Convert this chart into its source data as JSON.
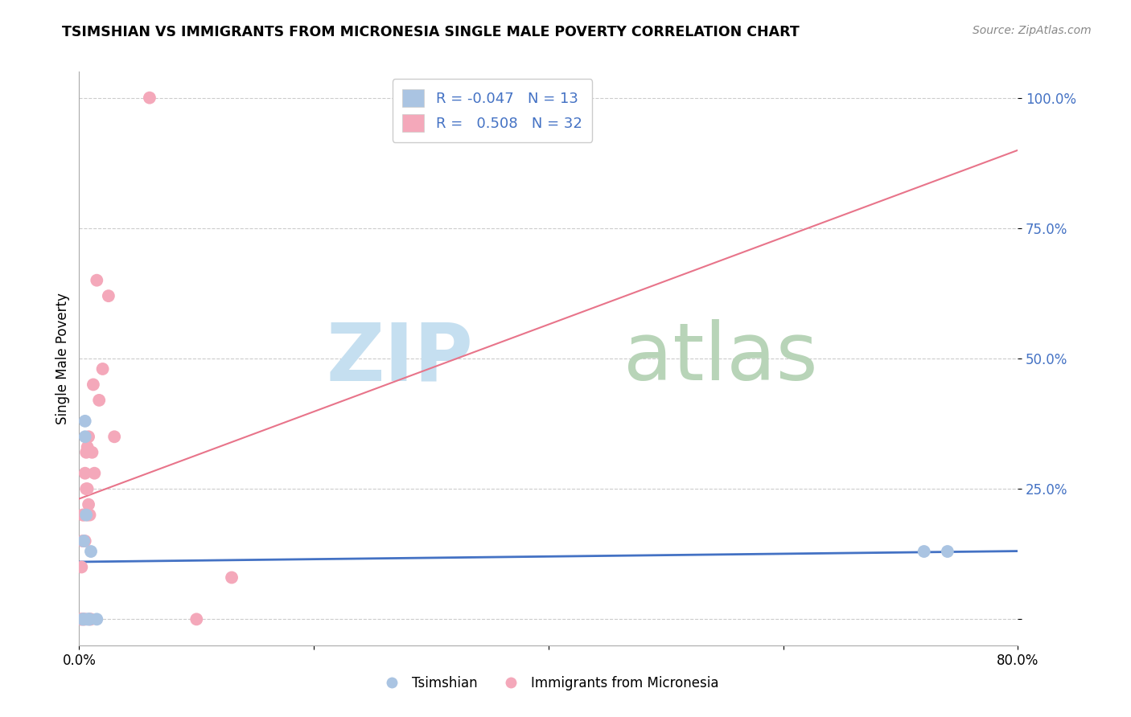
{
  "title": "TSIMSHIAN VS IMMIGRANTS FROM MICRONESIA SINGLE MALE POVERTY CORRELATION CHART",
  "source": "Source: ZipAtlas.com",
  "ylabel": "Single Male Poverty",
  "y_ticks": [
    0.0,
    0.25,
    0.5,
    0.75,
    1.0
  ],
  "y_tick_labels": [
    "",
    "25.0%",
    "50.0%",
    "75.0%",
    "100.0%"
  ],
  "x_ticks": [
    0.0,
    0.2,
    0.4,
    0.6,
    0.8
  ],
  "x_tick_labels": [
    "0.0%",
    "",
    "",
    "",
    "80.0%"
  ],
  "xlim": [
    0.0,
    0.8
  ],
  "ylim": [
    -0.05,
    1.05
  ],
  "legend_R_blue": "-0.047",
  "legend_N_blue": "13",
  "legend_R_pink": "0.508",
  "legend_N_pink": "32",
  "tsimshian_color": "#aac4e2",
  "micronesia_color": "#f4a8ba",
  "tsimshian_line_color": "#4472c4",
  "micronesia_line_color": "#e8748a",
  "legend_label_blue": "Tsimshian",
  "legend_label_pink": "Immigrants from Micronesia",
  "tsimshian_x": [
    0.003,
    0.004,
    0.004,
    0.005,
    0.005,
    0.006,
    0.007,
    0.008,
    0.009,
    0.01,
    0.015,
    0.72,
    0.74
  ],
  "tsimshian_y": [
    0.0,
    0.0,
    0.15,
    0.38,
    0.35,
    0.2,
    0.0,
    0.0,
    0.0,
    0.13,
    0.0,
    0.13,
    0.13
  ],
  "micronesia_x": [
    0.001,
    0.002,
    0.002,
    0.003,
    0.003,
    0.003,
    0.004,
    0.004,
    0.005,
    0.005,
    0.005,
    0.006,
    0.006,
    0.007,
    0.007,
    0.007,
    0.008,
    0.008,
    0.009,
    0.009,
    0.01,
    0.011,
    0.012,
    0.013,
    0.015,
    0.017,
    0.02,
    0.025,
    0.03,
    0.06,
    0.1,
    0.13
  ],
  "micronesia_y": [
    0.0,
    0.0,
    0.1,
    0.0,
    0.15,
    0.2,
    0.0,
    0.2,
    0.0,
    0.15,
    0.28,
    0.25,
    0.32,
    0.25,
    0.33,
    0.2,
    0.22,
    0.35,
    0.0,
    0.2,
    0.0,
    0.32,
    0.45,
    0.28,
    0.65,
    0.42,
    0.48,
    0.62,
    0.35,
    1.0,
    0.0,
    0.08
  ],
  "tsim_line_x_start": 0.0,
  "tsim_line_x_end": 0.8,
  "micro_line_x_start": 0.0,
  "micro_line_x_end": 0.8
}
